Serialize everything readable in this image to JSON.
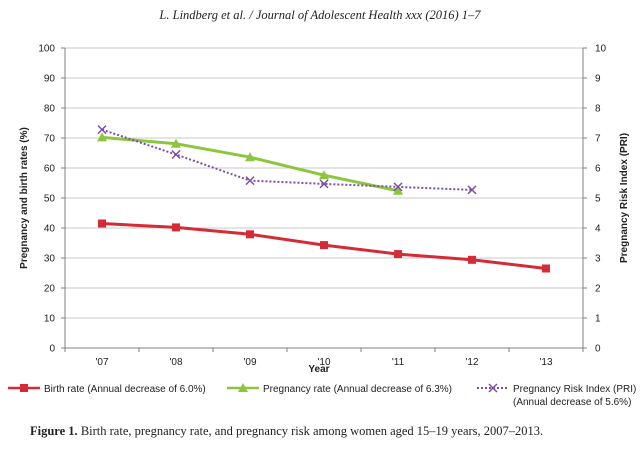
{
  "header": {
    "citation": "L. Lindberg et al. / Journal of Adolescent Health xxx (2016) 1–7"
  },
  "caption": {
    "label": "Figure 1.",
    "text": "Birth rate, pregnancy rate, and pregnancy risk among women aged 15–19 years, 2007–2013."
  },
  "chart_data": {
    "type": "line",
    "categories": [
      "'07",
      "'08",
      "'09",
      "'10",
      "'11",
      "'12",
      "'13"
    ],
    "xlabel": "Year",
    "ylabel": "Pregnancy and birth rates (%)",
    "y2label": "Pregnancy Risk Index (PRI)",
    "ylim": [
      0,
      100
    ],
    "y2lim": [
      0,
      10
    ],
    "yticks": [
      "0",
      "10",
      "20",
      "30",
      "40",
      "50",
      "60",
      "70",
      "80",
      "90",
      "100"
    ],
    "y2ticks": [
      "0",
      "1",
      "2",
      "3",
      "4",
      "5",
      "6",
      "7",
      "8",
      "9",
      "10"
    ],
    "grid": true,
    "series": [
      {
        "name": "Birth rate (Annual decrease of 6.0%)",
        "axis": "left",
        "color": "#d42b36",
        "marker": "square",
        "values": [
          41.5,
          40.2,
          37.9,
          34.3,
          31.3,
          29.4,
          26.5
        ]
      },
      {
        "name": "Pregnancy rate (Annual decrease of 6.3%)",
        "axis": "left",
        "color": "#8cc63e",
        "marker": "triangle",
        "values": [
          70.2,
          68.1,
          63.6,
          57.6,
          52.4,
          null,
          null
        ]
      },
      {
        "name": "Pregnancy Risk Index (PRI)",
        "name_line2": "(Annual decrease of 5.6%)",
        "axis": "right",
        "color": "#7d4ea3",
        "marker": "x",
        "dashed": true,
        "values": [
          7.28,
          6.45,
          5.58,
          5.47,
          5.37,
          5.27,
          null
        ]
      }
    ]
  }
}
